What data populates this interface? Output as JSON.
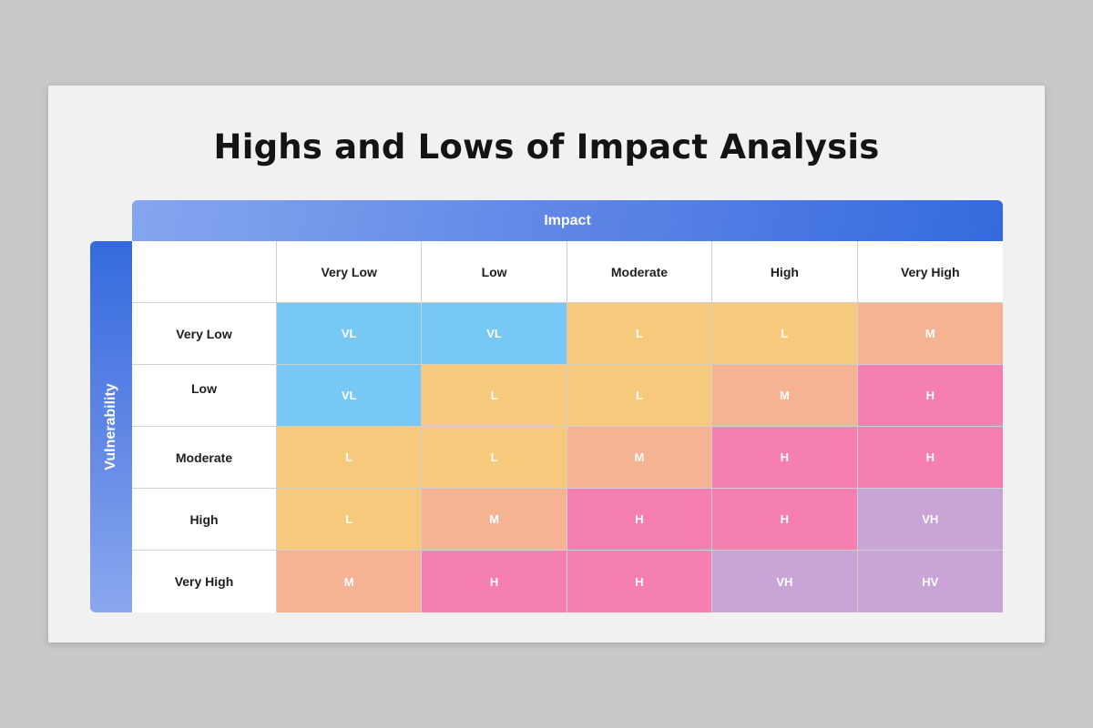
{
  "title": "Highs and Lows of Impact Analysis",
  "impact_label": "Impact",
  "vulnerability_label": "Vulnerability",
  "columns": [
    "Very Low",
    "Low",
    "Moderate",
    "High",
    "Very High"
  ],
  "rows": [
    {
      "label": "Very Low",
      "cells": [
        "VL",
        "VL",
        "L",
        "L",
        "M"
      ]
    },
    {
      "label": "Low",
      "cells": [
        "VL",
        "L",
        "L",
        "M",
        "H"
      ]
    },
    {
      "label": "Moderate",
      "cells": [
        "L",
        "L",
        "M",
        "H",
        "H"
      ]
    },
    {
      "label": "High",
      "cells": [
        "L",
        "M",
        "H",
        "H",
        "VH"
      ]
    },
    {
      "label": "Very High",
      "cells": [
        "M",
        "H",
        "H",
        "VH",
        "HV"
      ]
    }
  ],
  "colors": {
    "VL": "#77c8f5",
    "L": "#f6c97d",
    "M": "#f6b393",
    "H": "#f47fb0",
    "VH": "#c9a4d6",
    "HV": "#c9a4d6"
  }
}
